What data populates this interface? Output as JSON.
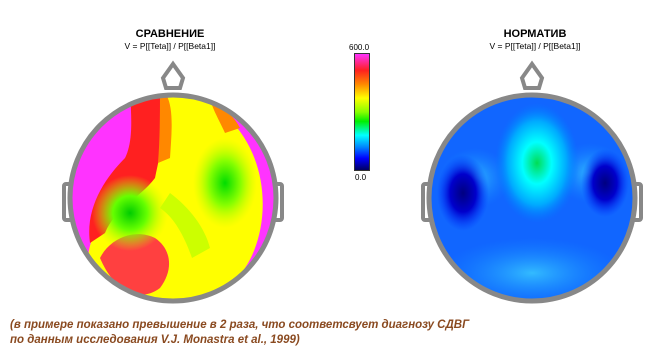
{
  "left_panel": {
    "title": "СРАВНЕНИЕ",
    "formula": "V = P[[Teta]] / P[[Beta1]]"
  },
  "right_panel": {
    "title": "НОРМАТИВ",
    "formula": "V = P[[Teta]] / P[[Beta1]]"
  },
  "scale": {
    "max_label": "600.0",
    "min_label": "0.0",
    "colors": [
      "#ff33ff",
      "#ff2020",
      "#ff8800",
      "#ffff00",
      "#88ff00",
      "#00ee00",
      "#00ffff",
      "#0088ff",
      "#0000ff",
      "#000060"
    ]
  },
  "caption": {
    "line1": "(в примере показано превышение в 2 раза, что соответсвует диагнозу СДВГ",
    "line2": "по данным исследования V.J. Monastra et al., 1999)"
  }
}
